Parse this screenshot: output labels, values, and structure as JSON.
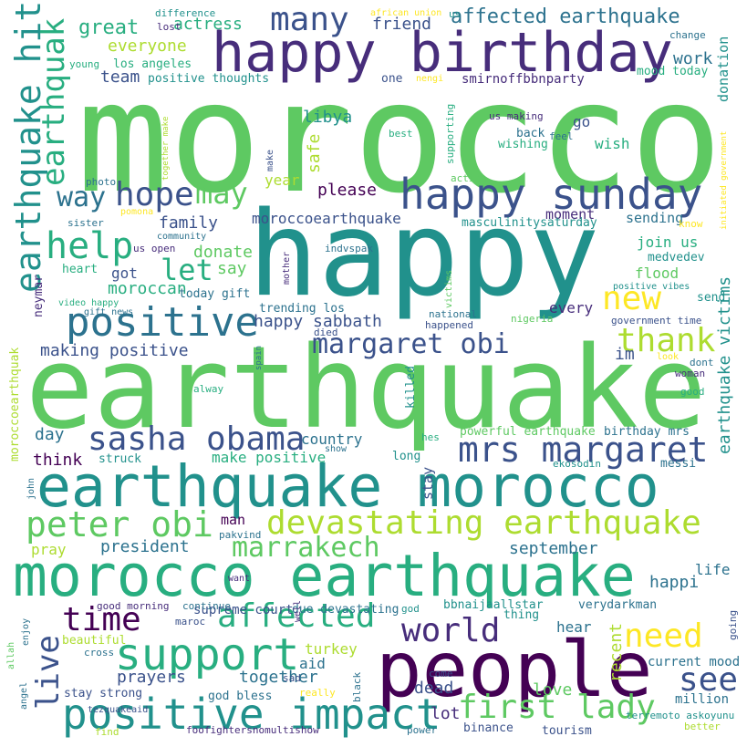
{
  "palette": {
    "background": "#ffffff",
    "colors": [
      "#440154",
      "#472d7b",
      "#3b528b",
      "#2c728e",
      "#21918c",
      "#28ae80",
      "#5ec962",
      "#addc30",
      "#fde725"
    ]
  },
  "words": [
    {
      "text": "morocco",
      "color": "#5ec962"
    },
    {
      "text": "happy",
      "color": "#21918c"
    },
    {
      "text": "earthquake",
      "color": "#5ec962"
    },
    {
      "text": "happy birthday",
      "color": "#472d7b"
    },
    {
      "text": "earthquake morocco",
      "color": "#21918c"
    },
    {
      "text": "morocco earthquake",
      "color": "#28ae80"
    },
    {
      "text": "people",
      "color": "#440154"
    },
    {
      "text": "happy sunday",
      "color": "#3b528b"
    },
    {
      "text": "positive impact",
      "color": "#21918c"
    },
    {
      "text": "support",
      "color": "#28ae80"
    },
    {
      "text": "positive",
      "color": "#2c728e"
    },
    {
      "text": "devastating earthquake",
      "color": "#addc30"
    },
    {
      "text": "mrs margaret",
      "color": "#3b528b"
    },
    {
      "text": "sasha obama",
      "color": "#3b528b"
    },
    {
      "text": "peter obi",
      "color": "#5ec962"
    },
    {
      "text": "first lady",
      "color": "#5ec962"
    },
    {
      "text": "earthquake hit",
      "color": "#21918c"
    },
    {
      "text": "earthquak",
      "color": "#28ae80"
    },
    {
      "text": "margaret obi",
      "color": "#3b528b"
    },
    {
      "text": "affected",
      "color": "#28ae80"
    },
    {
      "text": "marrakech",
      "color": "#5ec962"
    },
    {
      "text": "world",
      "color": "#472d7b"
    },
    {
      "text": "time",
      "color": "#440154"
    },
    {
      "text": "help",
      "color": "#28ae80"
    },
    {
      "text": "hope",
      "color": "#3b528b"
    },
    {
      "text": "many",
      "color": "#3b528b"
    },
    {
      "text": "new",
      "color": "#fde725"
    },
    {
      "text": "need",
      "color": "#fde725"
    },
    {
      "text": "thank",
      "color": "#addc30"
    },
    {
      "text": "see",
      "color": "#3b528b"
    },
    {
      "text": "may",
      "color": "#5ec962"
    },
    {
      "text": "way",
      "color": "#2c728e"
    },
    {
      "text": "let",
      "color": "#28ae80"
    },
    {
      "text": "live",
      "color": "#3b528b"
    },
    {
      "text": "affected earthquake",
      "color": "#2c728e"
    },
    {
      "text": "great",
      "color": "#28ae80"
    },
    {
      "text": "actress",
      "color": "#28ae80"
    },
    {
      "text": "everyone",
      "color": "#addc30"
    },
    {
      "text": "friend",
      "color": "#3b528b"
    },
    {
      "text": "work",
      "color": "#2c728e"
    },
    {
      "text": "team",
      "color": "#3b528b"
    },
    {
      "text": "los angeles",
      "color": "#28ae80"
    },
    {
      "text": "positive thoughts",
      "color": "#21918c"
    },
    {
      "text": "smirnoffbbnparty",
      "color": "#472d7b"
    },
    {
      "text": "mood today",
      "color": "#28ae80"
    },
    {
      "text": "donation",
      "color": "#21918c"
    },
    {
      "text": "earthquake victims",
      "color": "#21918c"
    },
    {
      "text": "go",
      "color": "#3b528b"
    },
    {
      "text": "wish",
      "color": "#28ae80"
    },
    {
      "text": "wishing",
      "color": "#28ae80"
    },
    {
      "text": "back",
      "color": "#2c728e"
    },
    {
      "text": "libya",
      "color": "#21918c"
    },
    {
      "text": "safe",
      "color": "#addc30"
    },
    {
      "text": "year",
      "color": "#addc30"
    },
    {
      "text": "please",
      "color": "#440154"
    },
    {
      "text": "moment",
      "color": "#472d7b"
    },
    {
      "text": "sending",
      "color": "#2c728e"
    },
    {
      "text": "family",
      "color": "#3b528b"
    },
    {
      "text": "moroccoearthquake",
      "color": "#3b528b"
    },
    {
      "text": "masculinitysaturday",
      "color": "#21918c"
    },
    {
      "text": "join us",
      "color": "#28ae80"
    },
    {
      "text": "medvedev",
      "color": "#21918c"
    },
    {
      "text": "flood",
      "color": "#5ec962"
    },
    {
      "text": "donate",
      "color": "#5ec962"
    },
    {
      "text": "say",
      "color": "#5ec962"
    },
    {
      "text": "heart",
      "color": "#28ae80"
    },
    {
      "text": "got",
      "color": "#3b528b"
    },
    {
      "text": "moroccan",
      "color": "#28ae80"
    },
    {
      "text": "today gift",
      "color": "#2c728e"
    },
    {
      "text": "trending los",
      "color": "#2c728e"
    },
    {
      "text": "happy sabbath",
      "color": "#3b528b"
    },
    {
      "text": "every",
      "color": "#472d7b"
    },
    {
      "text": "send",
      "color": "#21918c"
    },
    {
      "text": "making positive",
      "color": "#3b528b"
    },
    {
      "text": "im",
      "color": "#3b528b"
    },
    {
      "text": "day",
      "color": "#2c728e"
    },
    {
      "text": "think",
      "color": "#440154"
    },
    {
      "text": "country",
      "color": "#2c728e"
    },
    {
      "text": "make positive",
      "color": "#28ae80"
    },
    {
      "text": "struck",
      "color": "#21918c"
    },
    {
      "text": "powerful earthquake",
      "color": "#5ec962"
    },
    {
      "text": "birthday mrs",
      "color": "#2c728e"
    },
    {
      "text": "ekosodin",
      "color": "#21918c"
    },
    {
      "text": "messi",
      "color": "#2c728e"
    },
    {
      "text": "long",
      "color": "#21918c"
    },
    {
      "text": "hes",
      "color": "#28ae80"
    },
    {
      "text": "stay",
      "color": "#3b528b"
    },
    {
      "text": "man",
      "color": "#440154"
    },
    {
      "text": "pakvind",
      "color": "#2c728e"
    },
    {
      "text": "president",
      "color": "#2c728e"
    },
    {
      "text": "september",
      "color": "#2c728e"
    },
    {
      "text": "pray",
      "color": "#addc30"
    },
    {
      "text": "life",
      "color": "#2c728e"
    },
    {
      "text": "happi",
      "color": "#2c728e"
    },
    {
      "text": "recent",
      "color": "#addc30"
    },
    {
      "text": "hear",
      "color": "#2c728e"
    },
    {
      "text": "thing",
      "color": "#21918c"
    },
    {
      "text": "bbnaijaallstar",
      "color": "#21918c"
    },
    {
      "text": "verydarkman",
      "color": "#2c728e"
    },
    {
      "text": "current mood",
      "color": "#2c728e"
    },
    {
      "text": "million",
      "color": "#2c728e"
    },
    {
      "text": "terremoto askoyunu",
      "color": "#21918c"
    },
    {
      "text": "together",
      "color": "#2c728e"
    },
    {
      "text": "prayers",
      "color": "#3b528b"
    },
    {
      "text": "supreme court",
      "color": "#3b528b"
    },
    {
      "text": "due devastating",
      "color": "#2c728e"
    },
    {
      "text": "turkey",
      "color": "#addc30"
    },
    {
      "text": "aid",
      "color": "#2c728e"
    },
    {
      "text": "stay strong",
      "color": "#3b528b"
    },
    {
      "text": "god bless",
      "color": "#2c728e"
    },
    {
      "text": "dead",
      "color": "#3b528b"
    },
    {
      "text": "lot",
      "color": "#472d7b"
    },
    {
      "text": "love",
      "color": "#5ec962"
    },
    {
      "text": "binance",
      "color": "#3b528b"
    },
    {
      "text": "tourism",
      "color": "#3b528b"
    },
    {
      "text": "power",
      "color": "#2c728e"
    },
    {
      "text": "foofightersnomultishow",
      "color": "#472d7b"
    },
    {
      "text": "find",
      "color": "#addc30"
    },
    {
      "text": "better",
      "color": "#addc30"
    },
    {
      "text": "going",
      "color": "#3b528b"
    },
    {
      "text": "difference",
      "color": "#21918c"
    },
    {
      "text": "lost",
      "color": "#472d7b"
    },
    {
      "text": "african union",
      "color": "#fde725"
    },
    {
      "text": "us",
      "color": "#21918c"
    },
    {
      "text": "change",
      "color": "#2c728e"
    },
    {
      "text": "young",
      "color": "#28ae80"
    },
    {
      "text": "one",
      "color": "#3b528b"
    },
    {
      "text": "nengi",
      "color": "#fde725"
    },
    {
      "text": "us making",
      "color": "#472d7b"
    },
    {
      "text": "feel",
      "color": "#2c728e"
    },
    {
      "text": "best",
      "color": "#28ae80"
    },
    {
      "text": "supporting",
      "color": "#28ae80"
    },
    {
      "text": "action",
      "color": "#5ec962"
    },
    {
      "text": "positive vibes",
      "color": "#21918c"
    },
    {
      "text": "government time",
      "color": "#3b528b"
    },
    {
      "text": "know",
      "color": "#fde725"
    },
    {
      "text": "look",
      "color": "#fde725"
    },
    {
      "text": "dont",
      "color": "#2c728e"
    },
    {
      "text": "woman",
      "color": "#472d7b"
    },
    {
      "text": "good",
      "color": "#28ae80"
    },
    {
      "text": "photo",
      "color": "#2c728e"
    },
    {
      "text": "pomona",
      "color": "#fde725"
    },
    {
      "text": "sister",
      "color": "#2c728e"
    },
    {
      "text": "community",
      "color": "#2c728e"
    },
    {
      "text": "us open",
      "color": "#472d7b"
    },
    {
      "text": "neymar",
      "color": "#472d7b"
    },
    {
      "text": "video happy",
      "color": "#28ae80"
    },
    {
      "text": "gift news",
      "color": "#2c728e"
    },
    {
      "text": "alway",
      "color": "#28ae80"
    },
    {
      "text": "died",
      "color": "#3b528b"
    },
    {
      "text": "indvspak",
      "color": "#2c728e"
    },
    {
      "text": "national",
      "color": "#2c728e"
    },
    {
      "text": "happened",
      "color": "#3b528b"
    },
    {
      "text": "nigeria",
      "color": "#5ec962"
    },
    {
      "text": "show",
      "color": "#2c728e"
    },
    {
      "text": "john",
      "color": "#2c728e"
    },
    {
      "text": "good morning",
      "color": "#472d7b"
    },
    {
      "text": "continue",
      "color": "#2c728e"
    },
    {
      "text": "maroc",
      "color": "#3b528b"
    },
    {
      "text": "god",
      "color": "#21918c"
    },
    {
      "text": "come",
      "color": "#3b528b"
    },
    {
      "text": "beautiful",
      "color": "#addc30"
    },
    {
      "text": "cross",
      "color": "#2c728e"
    },
    {
      "text": "tezquakeaid",
      "color": "#3b528b"
    },
    {
      "text": "sad",
      "color": "#3b528b"
    },
    {
      "text": "really",
      "color": "#fde725"
    },
    {
      "text": "want",
      "color": "#472d7b"
    },
    {
      "text": "enjoy",
      "color": "#2c728e"
    },
    {
      "text": "allah",
      "color": "#5ec962"
    },
    {
      "text": "angel",
      "color": "#2c728e"
    },
    {
      "text": "together make",
      "color": "#addc30"
    },
    {
      "text": "make",
      "color": "#3b528b"
    },
    {
      "text": "mother",
      "color": "#472d7b"
    },
    {
      "text": "spain",
      "color": "#2c728e"
    },
    {
      "text": "victims",
      "color": "#5ec962"
    },
    {
      "text": "killed",
      "color": "#21918c"
    },
    {
      "text": "well",
      "color": "#472d7b"
    },
    {
      "text": "black",
      "color": "#2c728e"
    },
    {
      "text": "moroccoearthquak",
      "color": "#addc30"
    },
    {
      "text": "initiated government",
      "color": "#fde725"
    }
  ]
}
